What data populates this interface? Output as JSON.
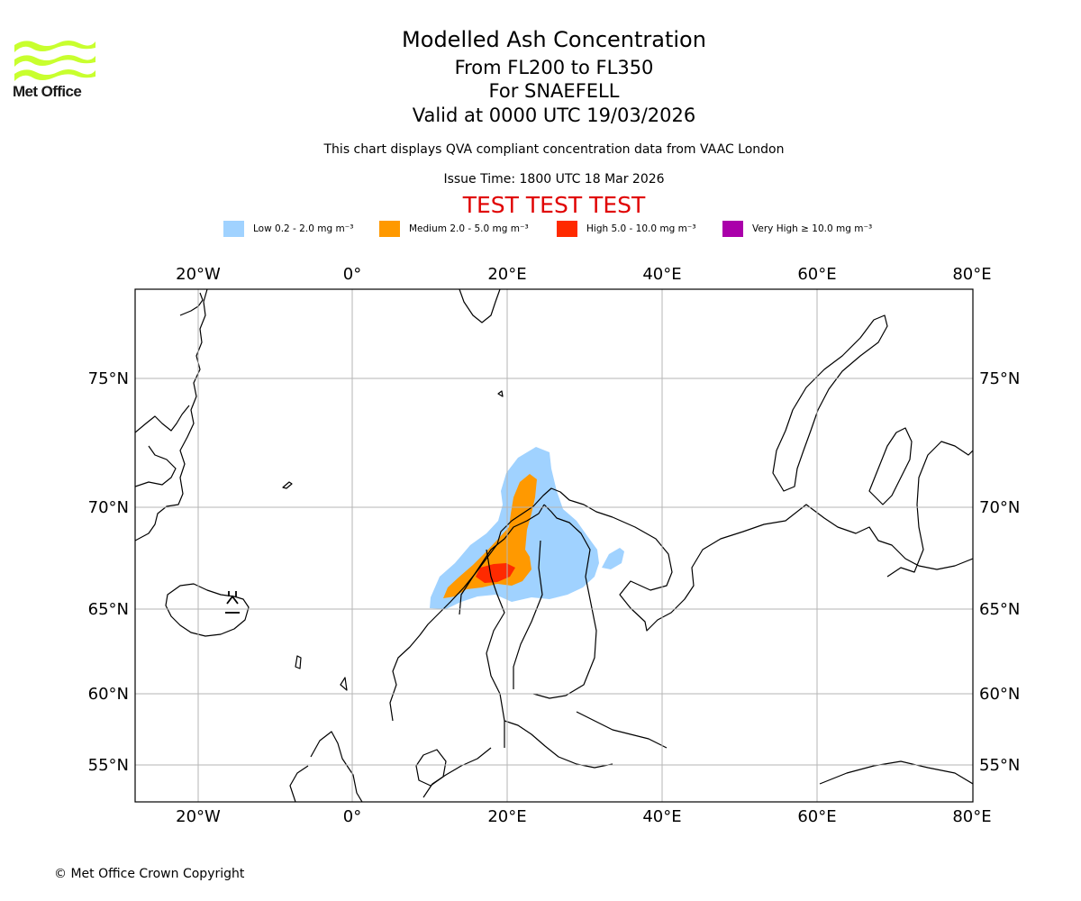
{
  "logo": {
    "text": "Met Office",
    "color": "#c8ff2e"
  },
  "header": {
    "title": "Modelled Ash Concentration",
    "levels": "From FL200 to FL350",
    "volcano": "For SNAEFELL",
    "valid": "Valid at 0000 UTC 19/03/2026",
    "note": "This chart displays QVA compliant concentration data from VAAC London",
    "issue": "Issue Time: 1800 UTC 18 Mar 2026",
    "test_banner": "TEST TEST TEST"
  },
  "legend": [
    {
      "label": "Low 0.2 - 2.0 mg m⁻³",
      "color": "#a0d2ff"
    },
    {
      "label": "Medium 2.0 - 5.0 mg m⁻³",
      "color": "#ff9900"
    },
    {
      "label": "High 5.0 - 10.0 mg m⁻³",
      "color": "#ff2a00"
    },
    {
      "label": "Very High ≥ 10.0 mg m⁻³",
      "color": "#aa00aa"
    }
  ],
  "axes": {
    "lon_labels": [
      "20°W",
      "0°",
      "20°E",
      "40°E",
      "60°E",
      "80°E"
    ],
    "lat_labels": [
      "75°N",
      "70°N",
      "65°N",
      "60°N",
      "55°N"
    ]
  },
  "footer": {
    "copyright": "© Met Office Crown Copyright"
  }
}
